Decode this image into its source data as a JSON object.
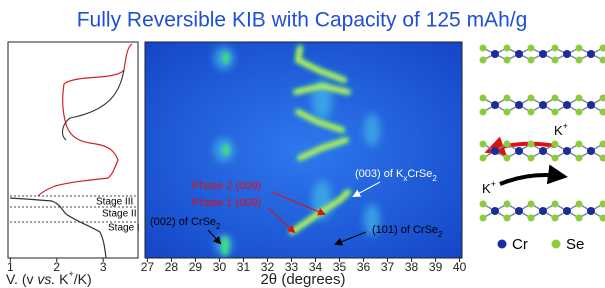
{
  "title": "Fully Reversible KIB with Capacity of 125 mAh/g",
  "voltage_panel": {
    "xlim": [
      0.95,
      3.75
    ],
    "xticks": [
      1,
      2,
      3
    ],
    "axis_label": {
      "lead": "V. (v ",
      "italic": "vs.",
      "ion": " K",
      "charge": "+",
      "rest": "/K)"
    },
    "stages": [
      "Stage III",
      "Stage II",
      "Stage I"
    ]
  },
  "xrd_panel": {
    "xlim": [
      26.9,
      40.1
    ],
    "xticks": [
      27,
      28,
      29,
      30,
      31,
      32,
      33,
      34,
      35,
      36,
      37,
      38,
      39,
      40
    ],
    "axis_label": "2θ (degrees)",
    "annotations": {
      "k_phase": [
        "(003) of K",
        "x",
        "CrSe",
        "2"
      ],
      "phase2": "Phase 2 (009)",
      "phase1": "Phase 1 (009)",
      "crse2_002": [
        "(002) of CrSe",
        "2"
      ],
      "crse2_101": [
        "(101) of CrSe",
        "2"
      ]
    }
  },
  "structure": {
    "extraction_ion": [
      "K",
      "+"
    ],
    "insertion_ion": [
      "K",
      "+"
    ],
    "legend": [
      "Cr",
      "Se"
    ]
  }
}
